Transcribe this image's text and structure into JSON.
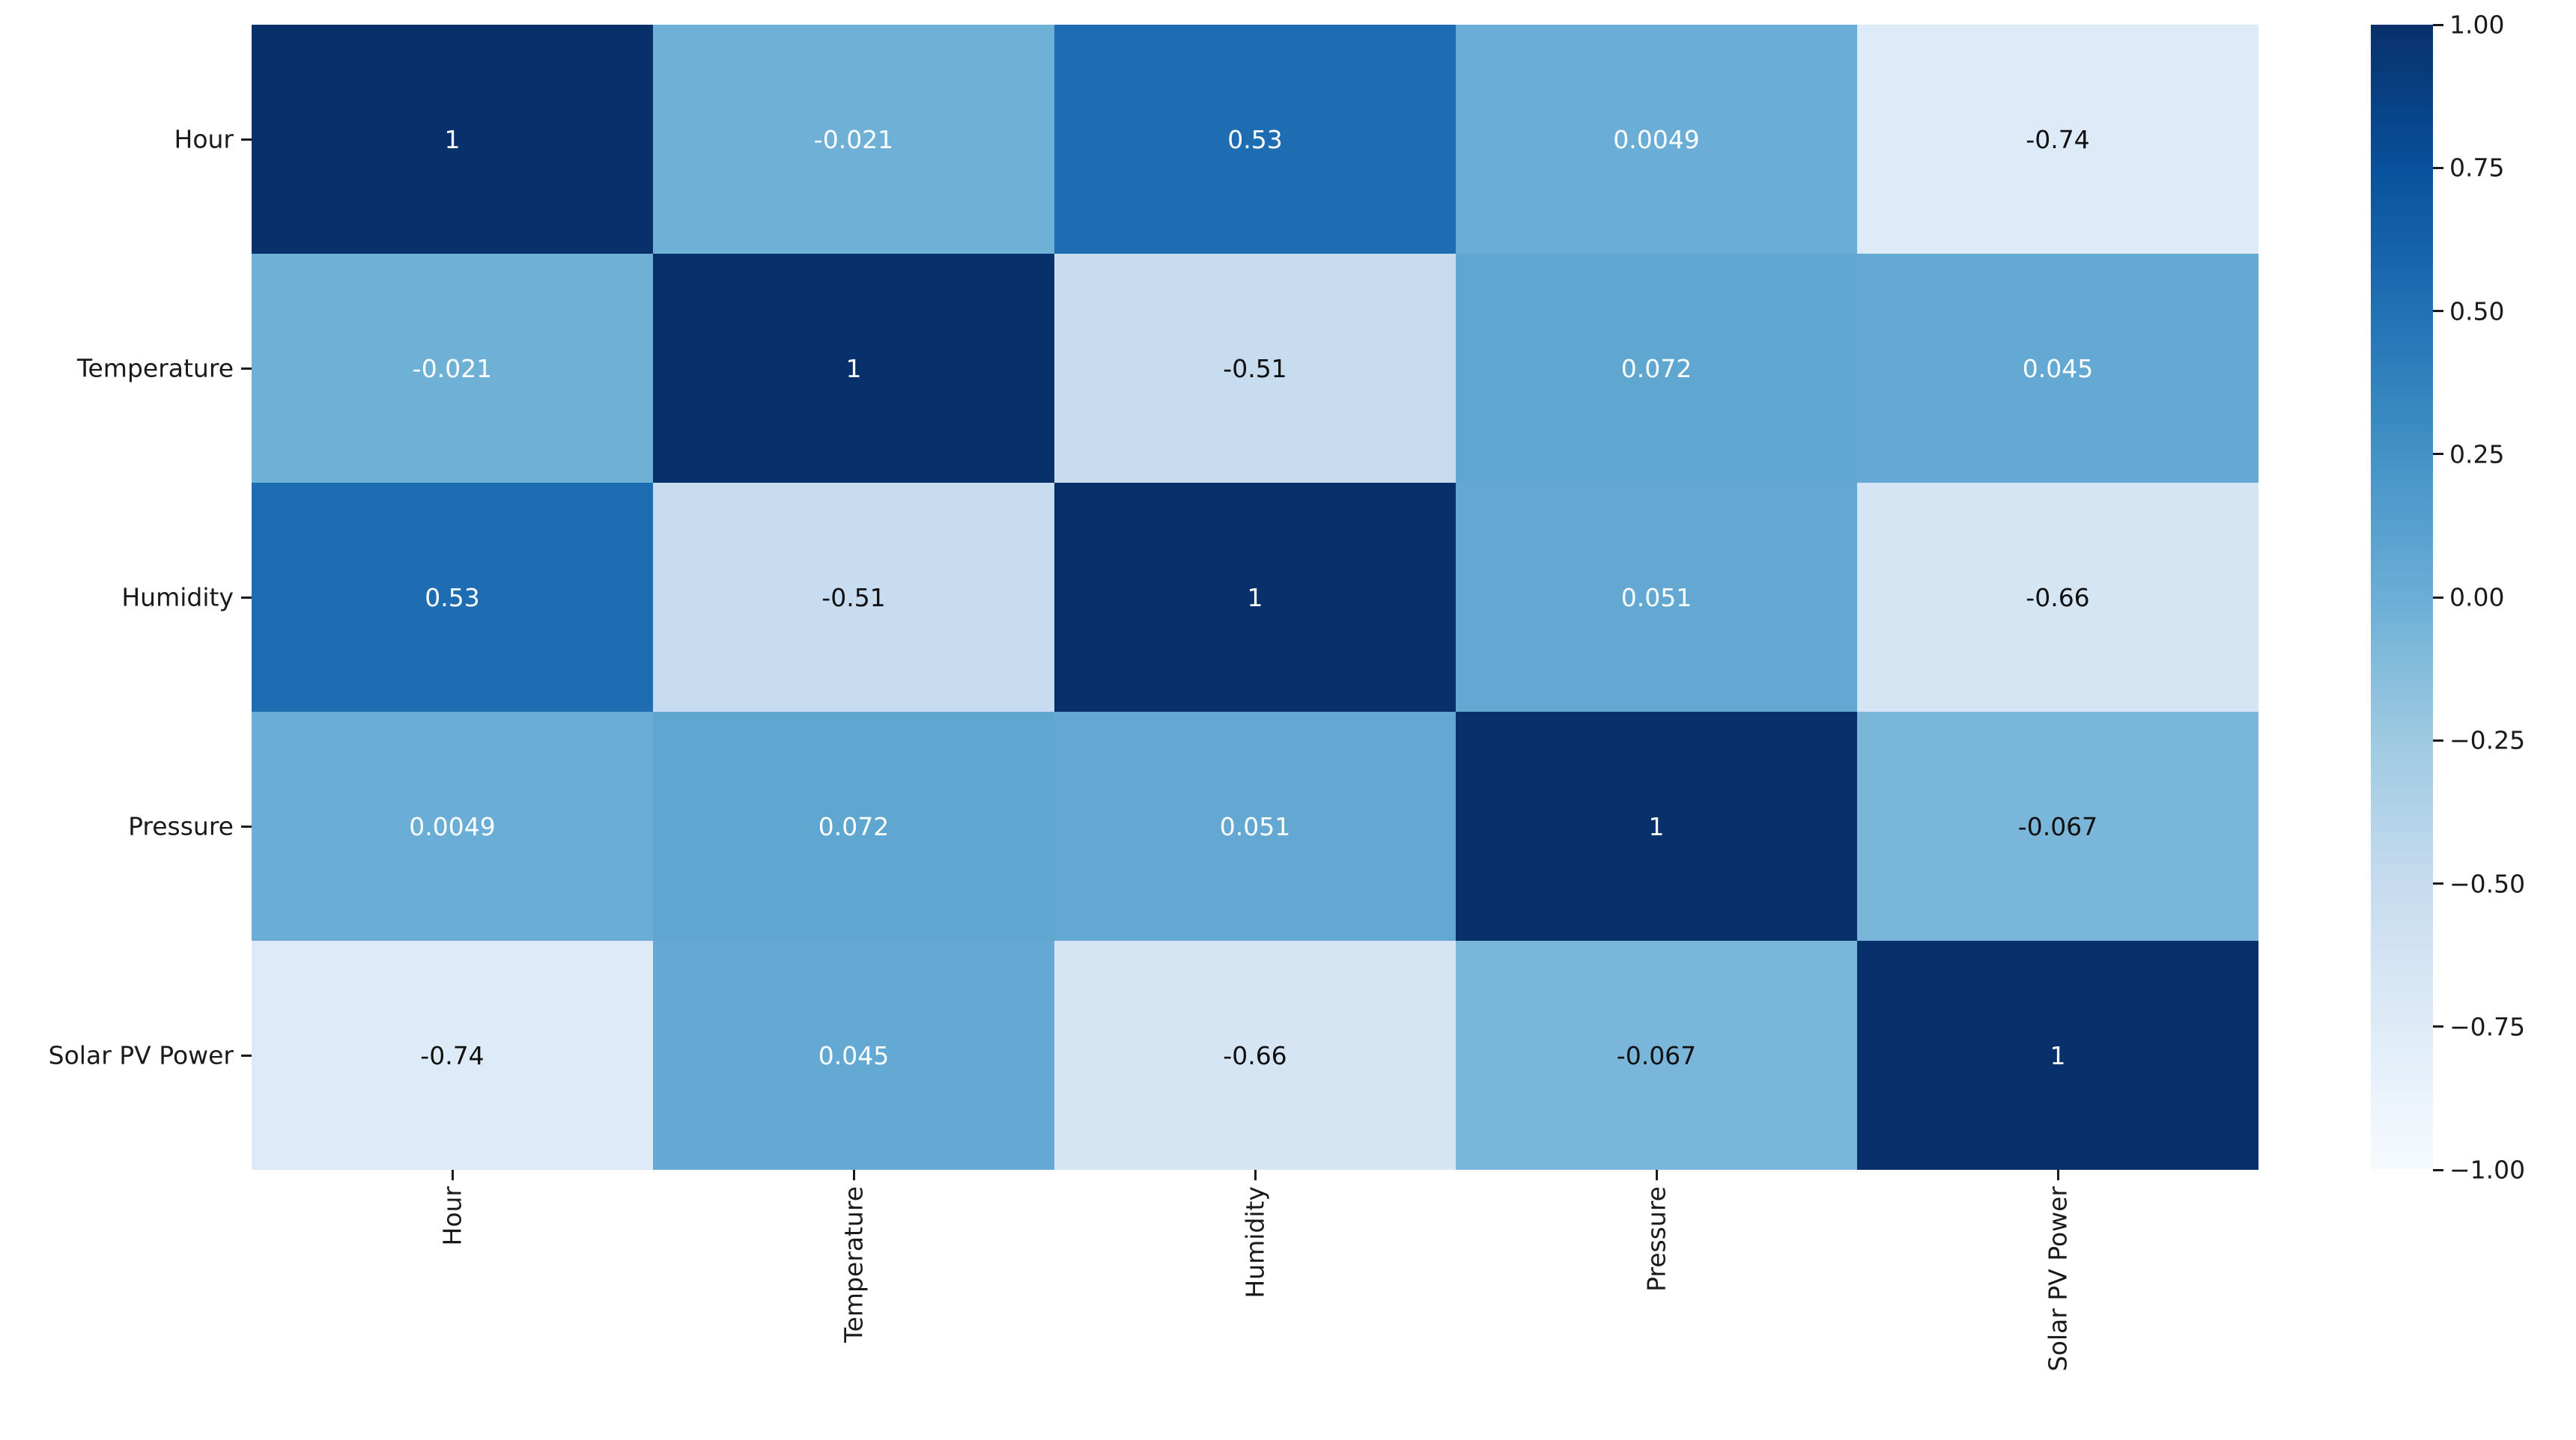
{
  "chart_data": {
    "type": "heatmap",
    "title": "",
    "categories": [
      "Hour",
      "Temperature",
      "Humidity",
      "Pressure",
      "Solar PV Power"
    ],
    "matrix": [
      [
        1,
        -0.021,
        0.53,
        0.0049,
        -0.74
      ],
      [
        -0.021,
        1,
        -0.51,
        0.072,
        0.045
      ],
      [
        0.53,
        -0.51,
        1,
        0.051,
        -0.66
      ],
      [
        0.0049,
        0.072,
        0.051,
        1,
        -0.067
      ],
      [
        -0.74,
        0.045,
        -0.66,
        -0.067,
        1
      ]
    ],
    "cell_labels": [
      [
        "1",
        "-0.021",
        "0.53",
        "0.0049",
        "-0.74"
      ],
      [
        "-0.021",
        "1",
        "-0.51",
        "0.072",
        "0.045"
      ],
      [
        "0.53",
        "-0.51",
        "1",
        "0.051",
        "-0.66"
      ],
      [
        "0.0049",
        "0.072",
        "0.051",
        "1",
        "-0.067"
      ],
      [
        "-0.74",
        "0.045",
        "-0.66",
        "-0.067",
        "1"
      ]
    ],
    "vmin": -1,
    "vmax": 1,
    "colormap": {
      "name": "Blues",
      "stops": [
        "#f7fbff",
        "#deebf7",
        "#c6dbef",
        "#9ecae1",
        "#6baed6",
        "#4292c6",
        "#2171b5",
        "#08519c",
        "#08306b"
      ]
    },
    "colorbar_ticks": [
      "1.00",
      "0.75",
      "0.50",
      "0.25",
      "0.00",
      "−0.25",
      "−0.50",
      "−0.75",
      "−1.00"
    ],
    "colorbar_tick_values": [
      1,
      0.75,
      0.5,
      0.25,
      0,
      -0.25,
      -0.5,
      -0.75,
      -1
    ],
    "annotation_text_colors": {
      "light": "#ffffff",
      "dark": "#101010"
    },
    "axis_text_color": "#1a1a1a",
    "background": "#ffffff",
    "legend_position": "right",
    "grid": false
  }
}
